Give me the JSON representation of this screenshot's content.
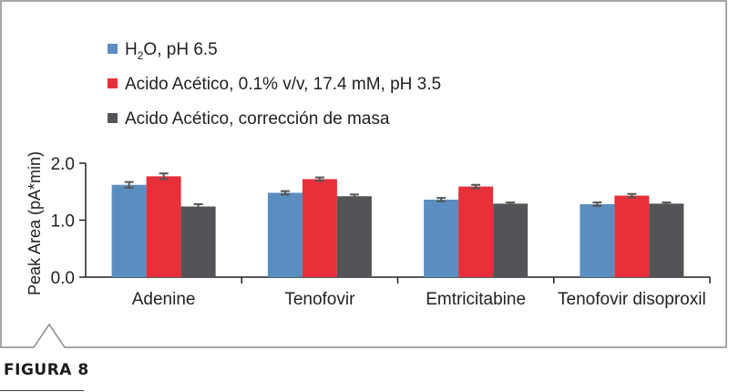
{
  "figure_label": "FIGURA 8",
  "chart_data": {
    "type": "bar",
    "title": "",
    "xlabel": "",
    "ylabel": "Peak Area (pA*min)",
    "ylim": [
      0.0,
      2.0
    ],
    "yticks": [
      "0.0",
      "1.0",
      "2.0"
    ],
    "categories": [
      "Adenine",
      "Tenofovir",
      "Emtricitabine",
      "Tenofovir disoproxil"
    ],
    "series": [
      {
        "name": "H2O, pH 6.5",
        "color": "#5b8ec0",
        "values": [
          1.62,
          1.48,
          1.36,
          1.28
        ],
        "errors": [
          0.05,
          0.03,
          0.03,
          0.03
        ]
      },
      {
        "name": "Acido Acético, 0.1% v/v, 17.4 mM, pH 3.5",
        "color": "#e8303a",
        "values": [
          1.77,
          1.72,
          1.59,
          1.43
        ],
        "errors": [
          0.05,
          0.03,
          0.03,
          0.03
        ]
      },
      {
        "name": "Acido Acético, corrección de masa",
        "color": "#525457",
        "values": [
          1.24,
          1.42,
          1.29,
          1.29
        ],
        "errors": [
          0.04,
          0.03,
          0.02,
          0.02
        ]
      }
    ],
    "grid": false,
    "legend_position": "top-left"
  }
}
